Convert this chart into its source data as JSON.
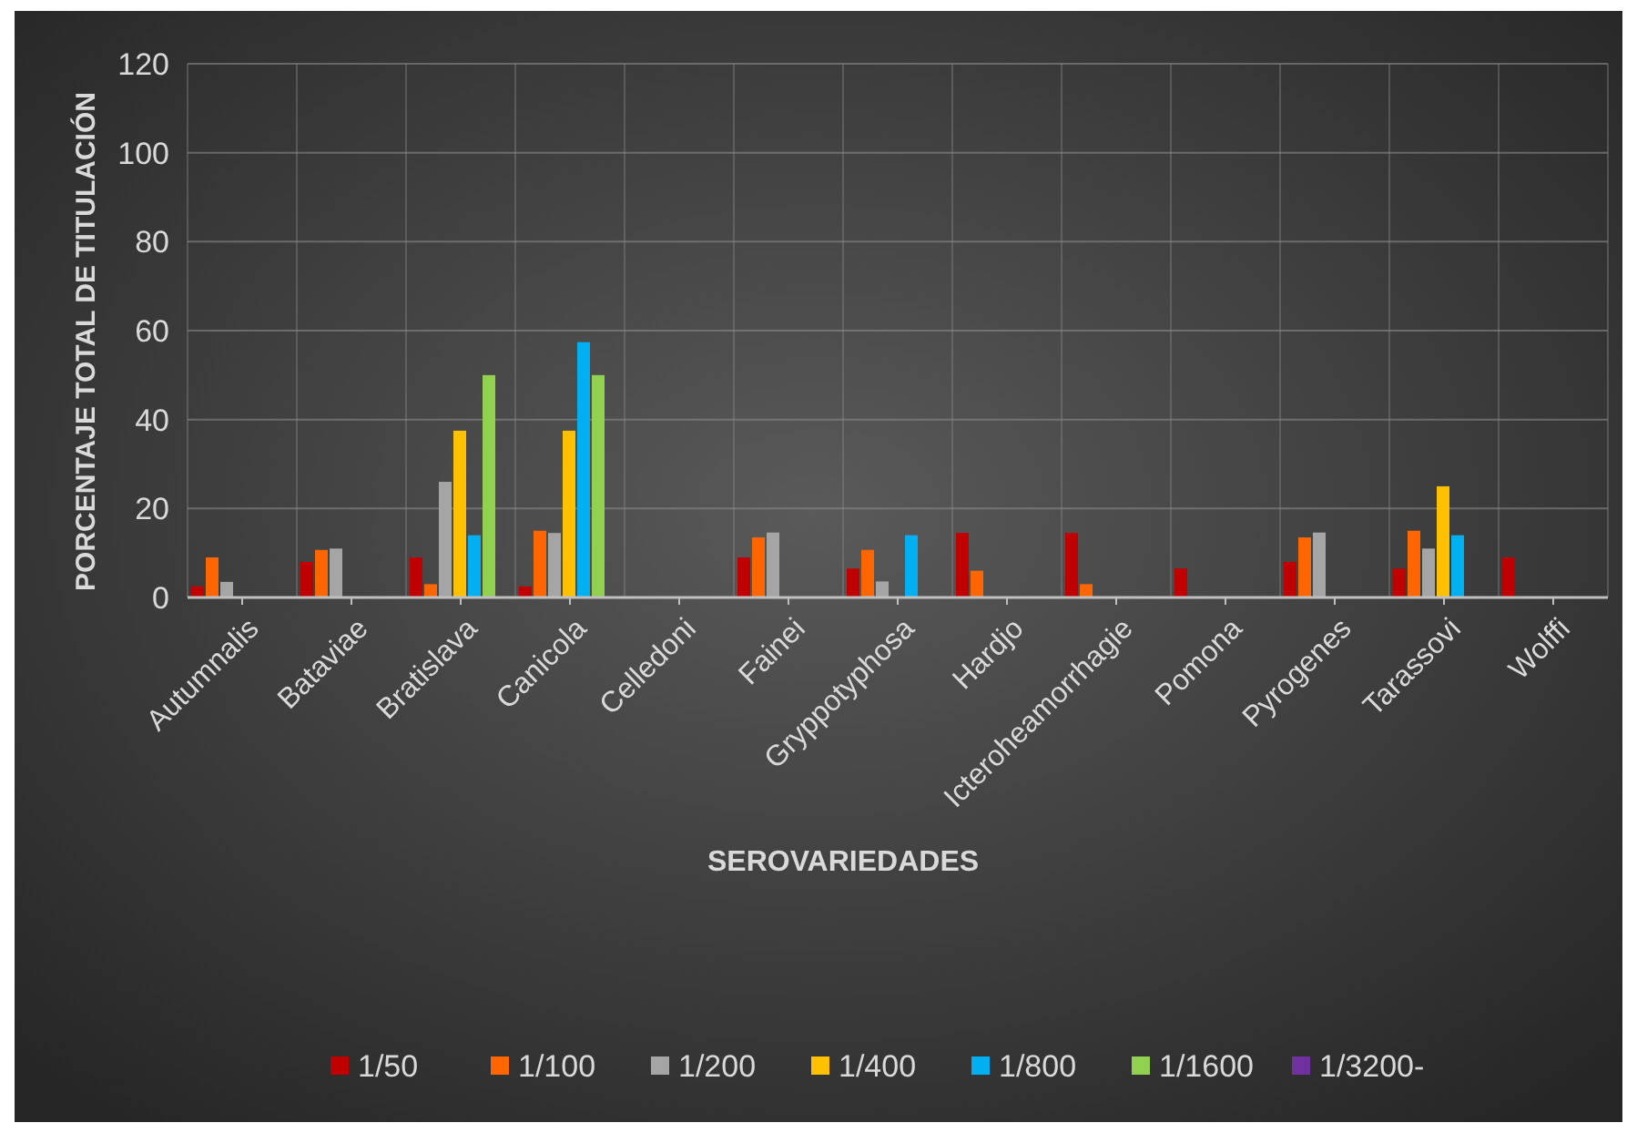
{
  "chart_data": {
    "type": "bar",
    "xlabel": "SEROVARIEDADES",
    "ylabel": "PORCENTAJE TOTAL DE TITULACIÓN",
    "categories": [
      "Autumnalis",
      "Bataviae",
      "Bratislava",
      "Canicola",
      "Celledoni",
      "Fainei",
      "Gryppotyphosa",
      "Hardjo",
      "Icteroheamorrhagie",
      "Pomona",
      "Pyrogenes",
      "Tarassovi",
      "Wolffi"
    ],
    "series": [
      {
        "name": "1/50",
        "color": "#c00000",
        "values": [
          2.5,
          8,
          9,
          2.5,
          null,
          9,
          6.5,
          14.5,
          14.5,
          6.5,
          8,
          6.5,
          9
        ]
      },
      {
        "name": "1/100",
        "color": "#ff6600",
        "values": [
          9,
          10.7,
          3,
          15,
          null,
          13.5,
          10.7,
          6,
          3,
          null,
          13.5,
          15,
          null
        ]
      },
      {
        "name": "1/200",
        "color": "#a5a5a5",
        "values": [
          3.5,
          11,
          26,
          14.5,
          null,
          14.6,
          3.6,
          null,
          null,
          null,
          14.6,
          11,
          null
        ]
      },
      {
        "name": "1/400",
        "color": "#ffc000",
        "values": [
          null,
          null,
          37.5,
          37.5,
          null,
          null,
          null,
          null,
          null,
          null,
          null,
          25,
          null
        ]
      },
      {
        "name": "1/800",
        "color": "#00b0f0",
        "values": [
          null,
          null,
          14,
          57.4,
          null,
          null,
          14,
          null,
          null,
          null,
          null,
          14,
          null
        ]
      },
      {
        "name": "1/1600",
        "color": "#92d050",
        "values": [
          null,
          null,
          50,
          50,
          null,
          null,
          null,
          null,
          null,
          null,
          null,
          null,
          null
        ]
      },
      {
        "name": "1/3200-",
        "color": "#7030a0",
        "values": [
          null,
          null,
          null,
          null,
          null,
          null,
          null,
          null,
          null,
          null,
          null,
          null,
          null
        ]
      }
    ],
    "ylim": [
      0,
      120
    ],
    "yticks": [
      0,
      20,
      40,
      60,
      80,
      100,
      120
    ],
    "grid": true,
    "legend": "bottom"
  }
}
